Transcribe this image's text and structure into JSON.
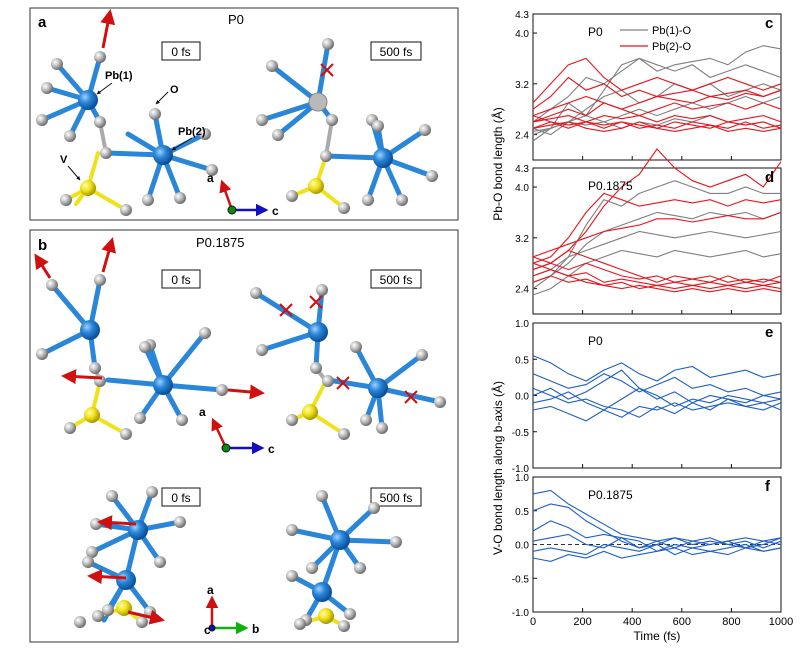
{
  "left": {
    "panel_a": {
      "letter": "a",
      "title": "P0",
      "t0": "0 fs",
      "t500": "500 fs",
      "pb1": "Pb(1)",
      "pb2": "Pb(2)",
      "o": "O",
      "v": "V",
      "axis_a": "a",
      "axis_c": "c"
    },
    "panel_b": {
      "letter": "b",
      "title": "P0.1875",
      "t0_top": "0 fs",
      "t500_top": "500 fs",
      "t0_bottom": "0 fs",
      "t500_bottom": "500 fs",
      "axis_a_top": "a",
      "axis_c_top": "c",
      "axis_a_bottom": "a",
      "axis_c_bottom": "c",
      "axis_b_bottom": "b"
    }
  },
  "colors": {
    "pb1": "#7f7f7f",
    "pb2": "#e8141c",
    "vo": "#1f5fc6",
    "atom_pb": "#2a86d8",
    "atom_v": "#f0e21a",
    "atom_o": "#b8b8b8",
    "arrow_red": "#d01010",
    "arrow_blue": "#1010c0",
    "arrow_green": "#10b010"
  },
  "chart_data": [
    {
      "id": "c",
      "type": "line",
      "panel_letter": "c",
      "label": "P0",
      "ylabel": "Pb-O bond length (Å)",
      "ylim": [
        2.0,
        4.3
      ],
      "yticks": [
        "2.4",
        "3.2",
        "4.0",
        "4.3"
      ],
      "xlim": [
        0,
        1000
      ],
      "legend": {
        "position": "top",
        "entries": [
          "Pb(1)-O",
          "Pb(2)-O"
        ]
      },
      "series": [
        {
          "group": "pb1",
          "values": [
            2.45,
            2.5,
            2.9,
            2.7,
            3.1,
            3.5,
            3.6,
            3.4,
            3.5,
            3.55,
            3.6,
            3.5,
            3.7,
            3.8,
            3.75
          ]
        },
        {
          "group": "pb1",
          "values": [
            2.6,
            2.8,
            3.0,
            3.3,
            3.2,
            3.4,
            3.6,
            3.5,
            3.4,
            3.5,
            3.3,
            3.4,
            3.5,
            3.4,
            3.3
          ]
        },
        {
          "group": "pb1",
          "values": [
            2.4,
            2.5,
            2.6,
            2.8,
            3.0,
            3.1,
            2.9,
            3.0,
            3.2,
            3.1,
            3.2,
            3.0,
            3.1,
            3.2,
            3.1
          ]
        },
        {
          "group": "pb1",
          "values": [
            2.3,
            2.5,
            2.6,
            2.55,
            2.6,
            2.7,
            2.8,
            2.7,
            2.8,
            2.9,
            2.8,
            2.9,
            3.0,
            2.9,
            3.0
          ]
        },
        {
          "group": "pb1",
          "values": [
            2.5,
            2.4,
            2.6,
            2.7,
            2.6,
            2.5,
            2.6,
            2.55,
            2.65,
            2.6,
            2.7,
            2.6,
            2.55,
            2.6,
            2.5
          ]
        },
        {
          "group": "pb2",
          "values": [
            2.9,
            3.2,
            3.5,
            3.6,
            3.3,
            3.1,
            3.2,
            3.3,
            3.2,
            3.1,
            3.2,
            3.3,
            3.2,
            3.1,
            3.2
          ]
        },
        {
          "group": "pb2",
          "values": [
            2.8,
            3.0,
            3.3,
            3.1,
            3.2,
            3.0,
            3.1,
            3.0,
            3.05,
            3.1,
            3.0,
            3.05,
            3.1,
            3.0,
            3.1
          ]
        },
        {
          "group": "pb2",
          "values": [
            2.7,
            2.8,
            2.9,
            3.0,
            2.9,
            2.8,
            2.9,
            3.0,
            2.95,
            2.9,
            3.0,
            2.95,
            3.05,
            3.0,
            3.1
          ]
        },
        {
          "group": "pb2",
          "values": [
            2.6,
            2.7,
            2.8,
            2.7,
            2.9,
            2.8,
            2.7,
            2.8,
            2.9,
            2.8,
            2.85,
            2.9,
            2.8,
            2.9,
            2.8
          ]
        },
        {
          "group": "pb2",
          "values": [
            2.6,
            2.65,
            2.7,
            2.6,
            2.7,
            2.65,
            2.7,
            2.6,
            2.7,
            2.65,
            2.7,
            2.6,
            2.65,
            2.7,
            2.6
          ]
        },
        {
          "group": "pb2",
          "values": [
            2.5,
            2.6,
            2.55,
            2.6,
            2.5,
            2.6,
            2.55,
            2.5,
            2.6,
            2.55,
            2.5,
            2.6,
            2.55,
            2.6,
            2.5
          ]
        },
        {
          "group": "pb2",
          "values": [
            2.7,
            2.6,
            2.5,
            2.6,
            2.55,
            2.6,
            2.5,
            2.55,
            2.5,
            2.6,
            2.55,
            2.5,
            2.6,
            2.5,
            2.55
          ]
        },
        {
          "group": "pb2",
          "values": [
            2.5,
            2.55,
            2.6,
            2.5,
            2.45,
            2.5,
            2.6,
            2.5,
            2.45,
            2.5,
            2.55,
            2.45,
            2.5,
            2.45,
            2.5
          ]
        }
      ]
    },
    {
      "id": "d",
      "type": "line",
      "panel_letter": "d",
      "label": "P0.1875",
      "ylabel": "Pb-O bond length (Å)",
      "ylim": [
        2.0,
        4.3
      ],
      "yticks": [
        "2.4",
        "3.2",
        "4.0",
        "4.3"
      ],
      "xlim": [
        0,
        1000
      ],
      "series": [
        {
          "group": "pb2",
          "values": [
            2.7,
            2.8,
            3.0,
            3.3,
            3.7,
            4.0,
            4.2,
            4.6,
            4.3,
            4.1,
            4.0,
            4.1,
            4.2,
            4.0,
            4.4
          ]
        },
        {
          "group": "pb1",
          "values": [
            2.6,
            2.7,
            2.9,
            3.4,
            3.8,
            3.7,
            3.9,
            4.0,
            4.1,
            4.0,
            3.9,
            3.9,
            4.0,
            3.9,
            3.9
          ]
        },
        {
          "group": "pb2",
          "values": [
            2.8,
            2.9,
            3.2,
            3.6,
            3.9,
            3.8,
            3.7,
            3.75,
            3.8,
            3.75,
            3.8,
            3.7,
            3.8,
            3.75,
            3.8
          ]
        },
        {
          "group": "pb1",
          "values": [
            2.5,
            2.6,
            2.8,
            3.1,
            3.3,
            3.4,
            3.5,
            3.6,
            3.55,
            3.5,
            3.6,
            3.55,
            3.6,
            3.5,
            3.6
          ]
        },
        {
          "group": "pb2",
          "values": [
            2.9,
            3.0,
            3.1,
            3.2,
            3.3,
            3.35,
            3.4,
            3.5,
            3.5,
            3.45,
            3.5,
            3.55,
            3.5,
            3.5,
            3.6
          ]
        },
        {
          "group": "pb1",
          "values": [
            2.4,
            2.6,
            2.9,
            3.0,
            3.1,
            3.2,
            3.3,
            3.25,
            3.2,
            3.25,
            3.3,
            3.25,
            3.2,
            3.25,
            3.3
          ]
        },
        {
          "group": "pb1",
          "values": [
            2.3,
            2.4,
            2.6,
            2.8,
            2.9,
            3.0,
            2.95,
            2.9,
            3.0,
            2.95,
            2.9,
            2.95,
            3.0,
            2.9,
            2.95
          ]
        },
        {
          "group": "pb2",
          "values": [
            2.9,
            2.8,
            3.0,
            2.9,
            2.8,
            2.7,
            2.6,
            2.5,
            2.6,
            2.55,
            2.6,
            2.5,
            2.55,
            2.5,
            2.6
          ]
        },
        {
          "group": "pb2",
          "values": [
            2.7,
            2.8,
            2.7,
            2.8,
            2.7,
            2.6,
            2.55,
            2.6,
            2.5,
            2.55,
            2.5,
            2.6,
            2.5,
            2.55,
            2.5
          ]
        },
        {
          "group": "pb2",
          "values": [
            2.6,
            2.7,
            2.6,
            2.65,
            2.5,
            2.55,
            2.5,
            2.45,
            2.5,
            2.45,
            2.5,
            2.45,
            2.5,
            2.45,
            2.5
          ]
        },
        {
          "group": "pb2",
          "values": [
            2.5,
            2.6,
            2.5,
            2.55,
            2.45,
            2.5,
            2.4,
            2.45,
            2.4,
            2.45,
            2.4,
            2.45,
            2.4,
            2.45,
            2.4
          ]
        },
        {
          "group": "pb2",
          "values": [
            2.8,
            2.7,
            2.6,
            2.5,
            2.45,
            2.4,
            2.45,
            2.4,
            2.35,
            2.4,
            2.35,
            2.4,
            2.35,
            2.4,
            2.35
          ]
        }
      ]
    },
    {
      "id": "e",
      "type": "line",
      "panel_letter": "e",
      "label": "P0",
      "ylabel": "V-O bond length along b-axis (Å)",
      "ylim": [
        -1.0,
        1.0
      ],
      "yticks": [
        "-1.0",
        "-0.5",
        "0.0",
        "0.5",
        "1.0"
      ],
      "xlim": [
        0,
        1000
      ],
      "series": [
        {
          "group": "vo",
          "values": [
            0.55,
            0.45,
            0.3,
            0.2,
            0.35,
            0.45,
            0.3,
            0.2,
            0.35,
            0.4,
            0.25,
            0.3,
            0.35,
            0.25,
            0.3
          ]
        },
        {
          "group": "vo",
          "values": [
            0.3,
            0.2,
            0.1,
            0.15,
            0.3,
            0.2,
            0.05,
            0.15,
            0.25,
            0.1,
            0.15,
            0.05,
            0.1,
            0.0,
            0.05
          ]
        },
        {
          "group": "vo",
          "values": [
            0.0,
            0.1,
            -0.05,
            0.05,
            0.2,
            0.35,
            0.1,
            -0.05,
            0.05,
            -0.1,
            0.0,
            -0.05,
            -0.1,
            0.0,
            -0.05
          ]
        },
        {
          "group": "vo",
          "values": [
            -0.1,
            -0.05,
            0.05,
            -0.1,
            -0.2,
            -0.05,
            0.1,
            0.0,
            -0.15,
            -0.05,
            -0.1,
            0.0,
            -0.05,
            -0.1,
            -0.05
          ]
        },
        {
          "group": "vo",
          "values": [
            -0.2,
            -0.15,
            -0.25,
            -0.35,
            -0.2,
            -0.3,
            -0.15,
            -0.2,
            -0.1,
            -0.2,
            -0.15,
            -0.1,
            -0.15,
            -0.2,
            -0.1
          ]
        },
        {
          "group": "vo",
          "values": [
            0.1,
            0.0,
            -0.1,
            -0.05,
            -0.15,
            -0.2,
            -0.3,
            -0.15,
            -0.25,
            -0.1,
            -0.2,
            -0.05,
            -0.15,
            -0.1,
            -0.2
          ]
        }
      ]
    },
    {
      "id": "f",
      "type": "line",
      "panel_letter": "f",
      "label": "P0.1875",
      "ylabel": "V-O bond length along b-axis (Å)",
      "ylim": [
        -1.0,
        1.0
      ],
      "yticks": [
        "-1.0",
        "-0.5",
        "0.0",
        "0.5",
        "1.0"
      ],
      "xlim": [
        0,
        1000
      ],
      "xlabel": "Time (fs)",
      "xticks": [
        "0",
        "200",
        "400",
        "600",
        "800",
        "1000"
      ],
      "reference_line": 0.0,
      "series": [
        {
          "group": "vo",
          "values": [
            0.75,
            0.8,
            0.6,
            0.45,
            0.3,
            0.15,
            0.1,
            0.05,
            0.1,
            0.0,
            0.05,
            0.0,
            -0.05,
            0.05,
            0.0
          ]
        },
        {
          "group": "vo",
          "values": [
            0.5,
            0.6,
            0.55,
            0.35,
            0.2,
            0.05,
            -0.05,
            0.0,
            0.1,
            0.05,
            0.0,
            0.05,
            0.1,
            0.05,
            0.1
          ]
        },
        {
          "group": "vo",
          "values": [
            0.2,
            0.35,
            0.25,
            0.1,
            0.15,
            0.1,
            -0.05,
            0.05,
            -0.05,
            0.05,
            0.1,
            0.0,
            0.05,
            -0.05,
            0.05
          ]
        },
        {
          "group": "vo",
          "values": [
            0.05,
            0.1,
            0.15,
            0.0,
            -0.05,
            0.1,
            0.05,
            -0.1,
            0.0,
            -0.05,
            0.0,
            0.05,
            -0.05,
            0.0,
            0.1
          ]
        },
        {
          "group": "vo",
          "values": [
            -0.1,
            -0.05,
            -0.1,
            -0.15,
            0.0,
            -0.05,
            -0.1,
            0.0,
            -0.15,
            -0.05,
            -0.1,
            -0.05,
            0.0,
            -0.1,
            -0.05
          ]
        },
        {
          "group": "vo",
          "values": [
            -0.2,
            -0.25,
            -0.15,
            -0.2,
            -0.1,
            -0.2,
            -0.15,
            -0.1,
            -0.05,
            -0.15,
            -0.1,
            -0.15,
            -0.05,
            -0.1,
            -0.05
          ]
        }
      ]
    }
  ]
}
